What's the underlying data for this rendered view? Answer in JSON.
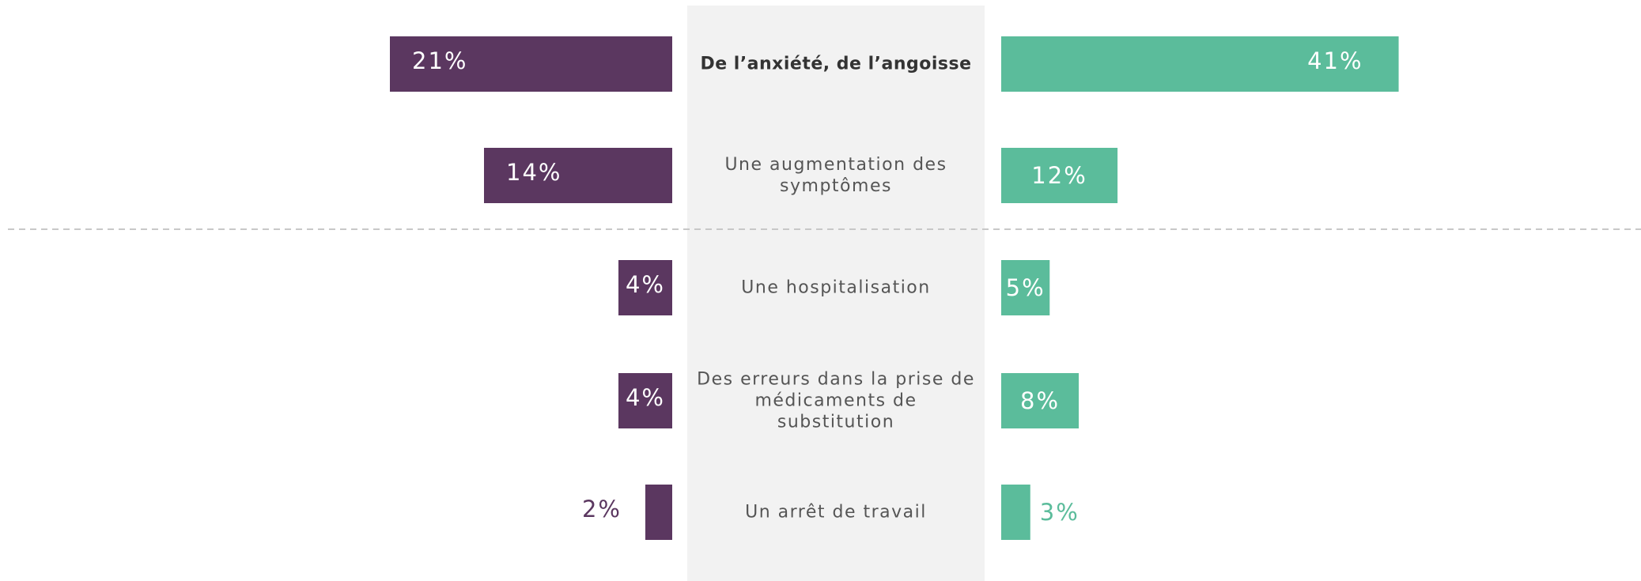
{
  "chart_data": {
    "type": "butterfly",
    "categories": [
      "De l’anxiété, de l’angoisse",
      "Une augmentation des symptômes",
      "Une hospitalisation",
      "Des erreurs dans la prise de médicaments de substitution",
      "Un arrêt de travail"
    ],
    "series": [
      {
        "color": "#5b3760",
        "values": [
          21,
          14,
          4,
          4,
          2
        ],
        "value_labels": [
          "21%",
          "14%",
          "4%",
          "4%",
          "2%"
        ],
        "xlim": [
          0,
          50
        ]
      },
      {
        "color": "#5bbc9b",
        "values": [
          41,
          12,
          5,
          8,
          3
        ],
        "value_labels": [
          "41%",
          "12%",
          "5%",
          "8%",
          "3%"
        ],
        "xlim": [
          0,
          66
        ]
      }
    ]
  }
}
